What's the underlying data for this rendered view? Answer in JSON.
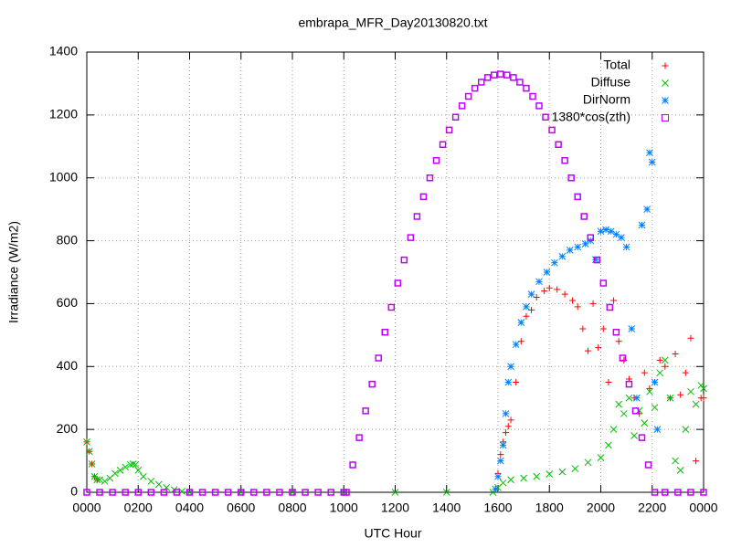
{
  "chart_data": {
    "type": "scatter",
    "title": "embrapa_MFR_Day20130820.txt",
    "xlabel": "UTC Hour",
    "ylabel": "Irradiance (W/m2)",
    "xlim": [
      0,
      24
    ],
    "xticks": [
      {
        "value": 0,
        "label": "0000"
      },
      {
        "value": 2,
        "label": "0200"
      },
      {
        "value": 4,
        "label": "0400"
      },
      {
        "value": 6,
        "label": "0600"
      },
      {
        "value": 8,
        "label": "0800"
      },
      {
        "value": 10,
        "label": "1000"
      },
      {
        "value": 12,
        "label": "1200"
      },
      {
        "value": 14,
        "label": "1400"
      },
      {
        "value": 16,
        "label": "1600"
      },
      {
        "value": 18,
        "label": "1800"
      },
      {
        "value": 20,
        "label": "2000"
      },
      {
        "value": 22,
        "label": "2200"
      },
      {
        "value": 24,
        "label": "0000"
      }
    ],
    "ylim": [
      0,
      1400
    ],
    "yticks": [
      0,
      200,
      400,
      600,
      800,
      1000,
      1200,
      1400
    ],
    "grid": true,
    "legend": "top-right",
    "series": [
      {
        "name": "Total",
        "color": "#ff0000",
        "marker": "plus",
        "x": [
          0,
          0.1,
          0.2,
          0.3,
          0.4,
          15.9,
          16,
          16.1,
          16.2,
          16.3,
          16.4,
          16.5,
          16.7,
          16.9,
          17.1,
          17.3,
          17.5,
          17.8,
          18.0,
          18.3,
          18.6,
          18.9,
          19.1,
          19.3,
          19.5,
          19.7,
          19.9,
          20.1,
          20.3,
          20.5,
          20.7,
          20.9,
          21.1,
          21.3,
          21.5,
          21.7,
          21.9,
          22.1,
          22.3,
          22.5,
          22.7,
          22.9,
          23.1,
          23.3,
          23.5,
          23.7,
          23.9,
          24
        ],
        "values": [
          160,
          130,
          90,
          50,
          40,
          10,
          60,
          120,
          160,
          190,
          210,
          230,
          350,
          480,
          560,
          580,
          620,
          640,
          650,
          645,
          630,
          610,
          590,
          520,
          450,
          600,
          460,
          520,
          350,
          610,
          480,
          420,
          360,
          300,
          250,
          380,
          330,
          350,
          420,
          400,
          300,
          440,
          310,
          380,
          490,
          100,
          300,
          300
        ]
      },
      {
        "name": "Diffuse",
        "color": "#00c000",
        "marker": "cross",
        "x": [
          0,
          0.1,
          0.2,
          0.3,
          0.4,
          0.5,
          0.7,
          0.9,
          1.1,
          1.3,
          1.5,
          1.7,
          1.8,
          1.9,
          2.0,
          2.2,
          2.5,
          2.8,
          3.1,
          3.4,
          3.7,
          4.0,
          6,
          8,
          10,
          12,
          14,
          15.8,
          16,
          16.2,
          16.5,
          17,
          17.5,
          18,
          18.5,
          19,
          19.5,
          20,
          20.3,
          20.5,
          20.7,
          20.9,
          21.1,
          21.3,
          21.5,
          21.7,
          21.9,
          22.1,
          22.3,
          22.5,
          22.7,
          22.9,
          23.1,
          23.3,
          23.5,
          23.7,
          23.9,
          24
        ],
        "values": [
          160,
          130,
          90,
          50,
          40,
          40,
          35,
          45,
          60,
          70,
          80,
          88,
          90,
          88,
          70,
          50,
          35,
          25,
          15,
          8,
          3,
          0,
          0,
          0,
          0,
          0,
          0,
          0,
          15,
          30,
          40,
          45,
          50,
          58,
          65,
          75,
          95,
          110,
          150,
          200,
          280,
          250,
          300,
          180,
          260,
          220,
          320,
          270,
          380,
          420,
          300,
          100,
          70,
          200,
          320,
          280,
          340,
          330
        ]
      },
      {
        "name": "DirNorm",
        "color": "#0080ff",
        "marker": "star",
        "x": [
          15.9,
          16,
          16.1,
          16.2,
          16.3,
          16.4,
          16.5,
          16.7,
          16.9,
          17.1,
          17.3,
          17.6,
          17.9,
          18.2,
          18.5,
          18.8,
          19.1,
          19.4,
          19.6,
          19.8,
          20.0,
          20.2,
          20.4,
          20.6,
          20.8,
          21.0,
          21.2,
          21.4,
          21.6,
          21.8,
          21.9,
          22.0,
          22.1,
          22.2
        ],
        "values": [
          10,
          50,
          100,
          150,
          250,
          350,
          400,
          470,
          540,
          590,
          630,
          670,
          700,
          730,
          750,
          770,
          780,
          790,
          800,
          740,
          830,
          835,
          830,
          820,
          810,
          780,
          520,
          300,
          850,
          900,
          1080,
          1050,
          350,
          200
        ]
      },
      {
        "name": "1380*cos(zth)",
        "color": "#c000ff",
        "marker": "square",
        "x": [
          0,
          0.5,
          1,
          1.5,
          2,
          2.5,
          3,
          3.5,
          4,
          4.5,
          5,
          5.5,
          6,
          6.5,
          7,
          7.5,
          8,
          8.5,
          9,
          9.5,
          10,
          10.1,
          10.35,
          10.6,
          10.85,
          11.1,
          11.35,
          11.6,
          11.85,
          12.1,
          12.35,
          12.6,
          12.85,
          13.1,
          13.35,
          13.6,
          13.85,
          14.1,
          14.35,
          14.6,
          14.85,
          15.1,
          15.35,
          15.6,
          15.85,
          16.1,
          16.35,
          16.6,
          16.85,
          17.1,
          17.35,
          17.6,
          17.85,
          18.1,
          18.35,
          18.6,
          18.85,
          19.1,
          19.35,
          19.6,
          19.85,
          20.1,
          20.35,
          20.6,
          20.85,
          21.1,
          21.35,
          21.6,
          21.85,
          22.1,
          22.5,
          23,
          23.5,
          24
        ],
        "values": [
          0,
          0,
          0,
          0,
          0,
          0,
          0,
          0,
          0,
          0,
          0,
          0,
          0,
          0,
          0,
          0,
          0,
          0,
          0,
          0,
          0,
          0,
          87,
          174,
          259,
          344,
          427,
          509,
          588,
          665,
          739,
          810,
          877,
          940,
          1000,
          1055,
          1106,
          1152,
          1193,
          1229,
          1259,
          1285,
          1304,
          1319,
          1327,
          1330,
          1327,
          1319,
          1304,
          1285,
          1259,
          1229,
          1193,
          1152,
          1106,
          1055,
          1000,
          940,
          877,
          810,
          739,
          665,
          588,
          509,
          427,
          344,
          259,
          174,
          87,
          0,
          0,
          0,
          0,
          0
        ]
      }
    ]
  }
}
